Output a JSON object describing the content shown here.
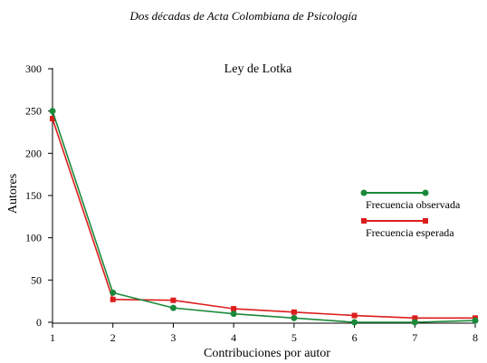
{
  "header": "Dos décadas de Acta Colombiana de Psicología",
  "chart_data": {
    "type": "line",
    "title": "Ley de Lotka",
    "xlabel": "Contribuciones por autor",
    "ylabel": "Autores",
    "x": [
      1,
      2,
      3,
      4,
      5,
      6,
      7,
      8
    ],
    "xlim": [
      1,
      8
    ],
    "ylim": [
      0,
      300
    ],
    "yticks": [
      0,
      50,
      100,
      150,
      200,
      250,
      300
    ],
    "grid": false,
    "legend_position": "right",
    "series": [
      {
        "name": "Frecuencia observada",
        "color": "#1a8a3a",
        "marker": "circle",
        "values": [
          250,
          35,
          17,
          10,
          5,
          0,
          0,
          2
        ]
      },
      {
        "name": "Frecuencia esperada",
        "color": "#dd1c1c",
        "marker": "square",
        "values": [
          241,
          27,
          26,
          16,
          12,
          8,
          5,
          5
        ]
      }
    ]
  }
}
